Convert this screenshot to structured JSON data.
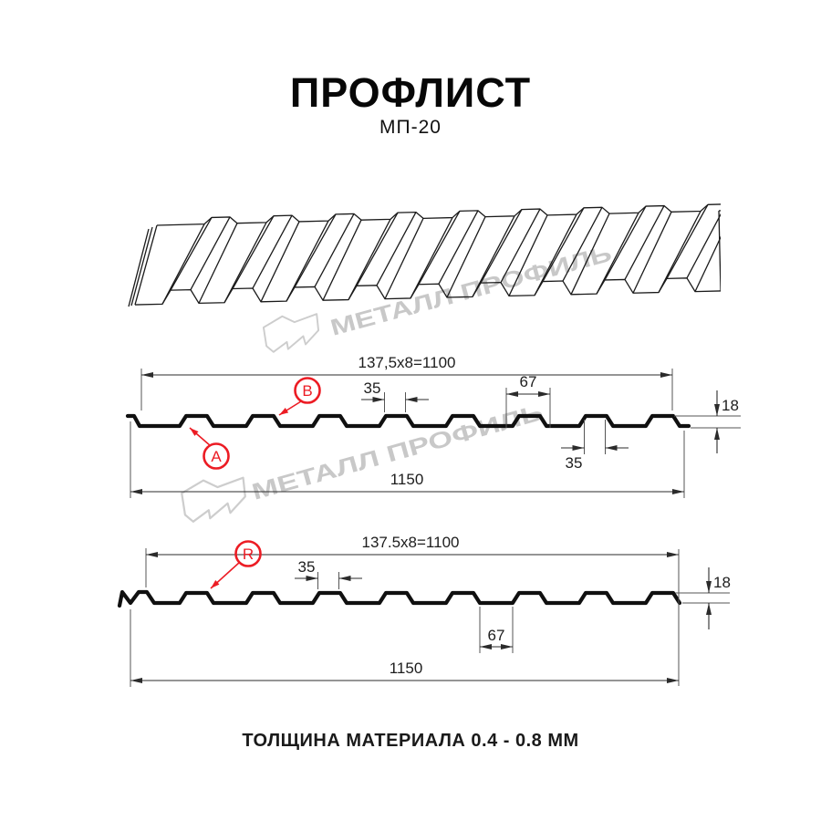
{
  "page": {
    "title": "ПРОФЛИСТ",
    "subtitle": "МП-20",
    "footer": "ТОЛЩИНА МАТЕРИАЛА 0.4 - 0.8 ММ",
    "background": "#ffffff"
  },
  "watermark": {
    "text": "МЕТАЛЛ ПРОФИЛЬ",
    "color": "#c8c8c8"
  },
  "colors": {
    "line": "#1a1a1a",
    "dimension": "#2b2b2b",
    "callout_red": "#ec1c24"
  },
  "sections": [
    {
      "id": "cross-section-ab",
      "callouts": [
        "A",
        "B"
      ],
      "dims": {
        "coverage": "137,5x8=1100",
        "rib_top": "35",
        "rib_base": "67",
        "rib_top_2": "35",
        "height": "18",
        "overall": "1150"
      }
    },
    {
      "id": "cross-section-r",
      "callouts": [
        "R"
      ],
      "dims": {
        "coverage": "137.5x8=1100",
        "rib_top": "35",
        "valley": "67",
        "height": "18",
        "overall": "1150"
      }
    }
  ]
}
